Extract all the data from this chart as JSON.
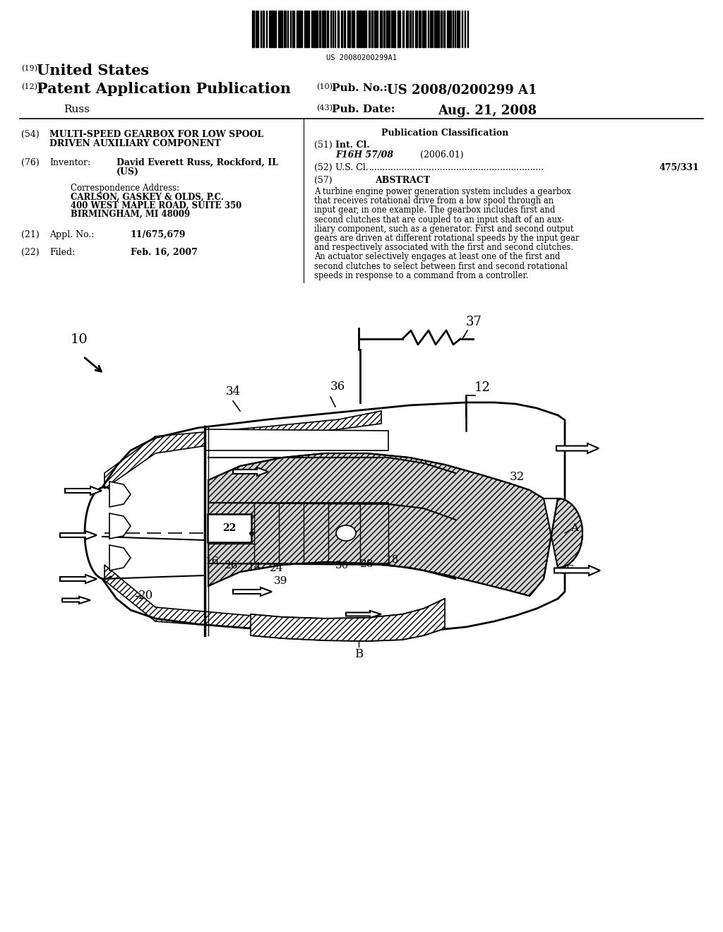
{
  "background_color": "#ffffff",
  "barcode_text": "US 20080200299A1",
  "patent_number": "US 2008/0200299 A1",
  "pub_date": "Aug. 21, 2008",
  "country": "United States",
  "type_line": "Patent Application Publication",
  "inventor_name": "Russ",
  "num19": "(19)",
  "num12": "(12)",
  "num10_pub": "(10)",
  "num43": "(43)",
  "pub_no_label": "Pub. No.:",
  "pub_date_label": "Pub. Date:",
  "section54_num": "(54)",
  "section54_title_1": "MULTI-SPEED GEARBOX FOR LOW SPOOL",
  "section54_title_2": "DRIVEN AUXILIARY COMPONENT",
  "section76_num": "(76)",
  "section76_label": "Inventor:",
  "section76_value_1": "David Everett Russ, Rockford, IL",
  "section76_value_2": "(US)",
  "corr_label": "Correspondence Address:",
  "corr_line1": "CARLSON, GASKEY & OLDS, P.C.",
  "corr_line2": "400 WEST MAPLE ROAD, SUITE 350",
  "corr_line3": "BIRMINGHAM, MI 48009",
  "section21_num": "(21)",
  "section21_label": "Appl. No.:",
  "section21_value": "11/675,679",
  "section22_num": "(22)",
  "section22_label": "Filed:",
  "section22_value": "Feb. 16, 2007",
  "pub_class_title": "Publication Classification",
  "section51_num": "(51)",
  "section51_label": "Int. Cl.",
  "section51_value": "F16H 57/08",
  "section51_year": "(2006.01)",
  "section52_num": "(52)",
  "section52_label": "U.S. Cl.",
  "section52_dots": "................................................................",
  "section52_value": "475/331",
  "section57_num": "(57)",
  "section57_label": "ABSTRACT",
  "abstract_text_1": "A turbine engine power generation system includes a gearbox",
  "abstract_text_2": "that receives rotational drive from a low spool through an",
  "abstract_text_3": "input gear, in one example. The gearbox includes first and",
  "abstract_text_4": "second clutches that are coupled to an input shaft of an aux-",
  "abstract_text_5": "iliary component, such as a generator. First and second output",
  "abstract_text_6": "gears are driven at different rotational speeds by the input gear",
  "abstract_text_7": "and respectively associated with the first and second clutches.",
  "abstract_text_8": "An actuator selectively engages at least one of the first and",
  "abstract_text_9": "second clutches to select between first and second rotational",
  "abstract_text_10": "speeds in response to a command from a controller."
}
